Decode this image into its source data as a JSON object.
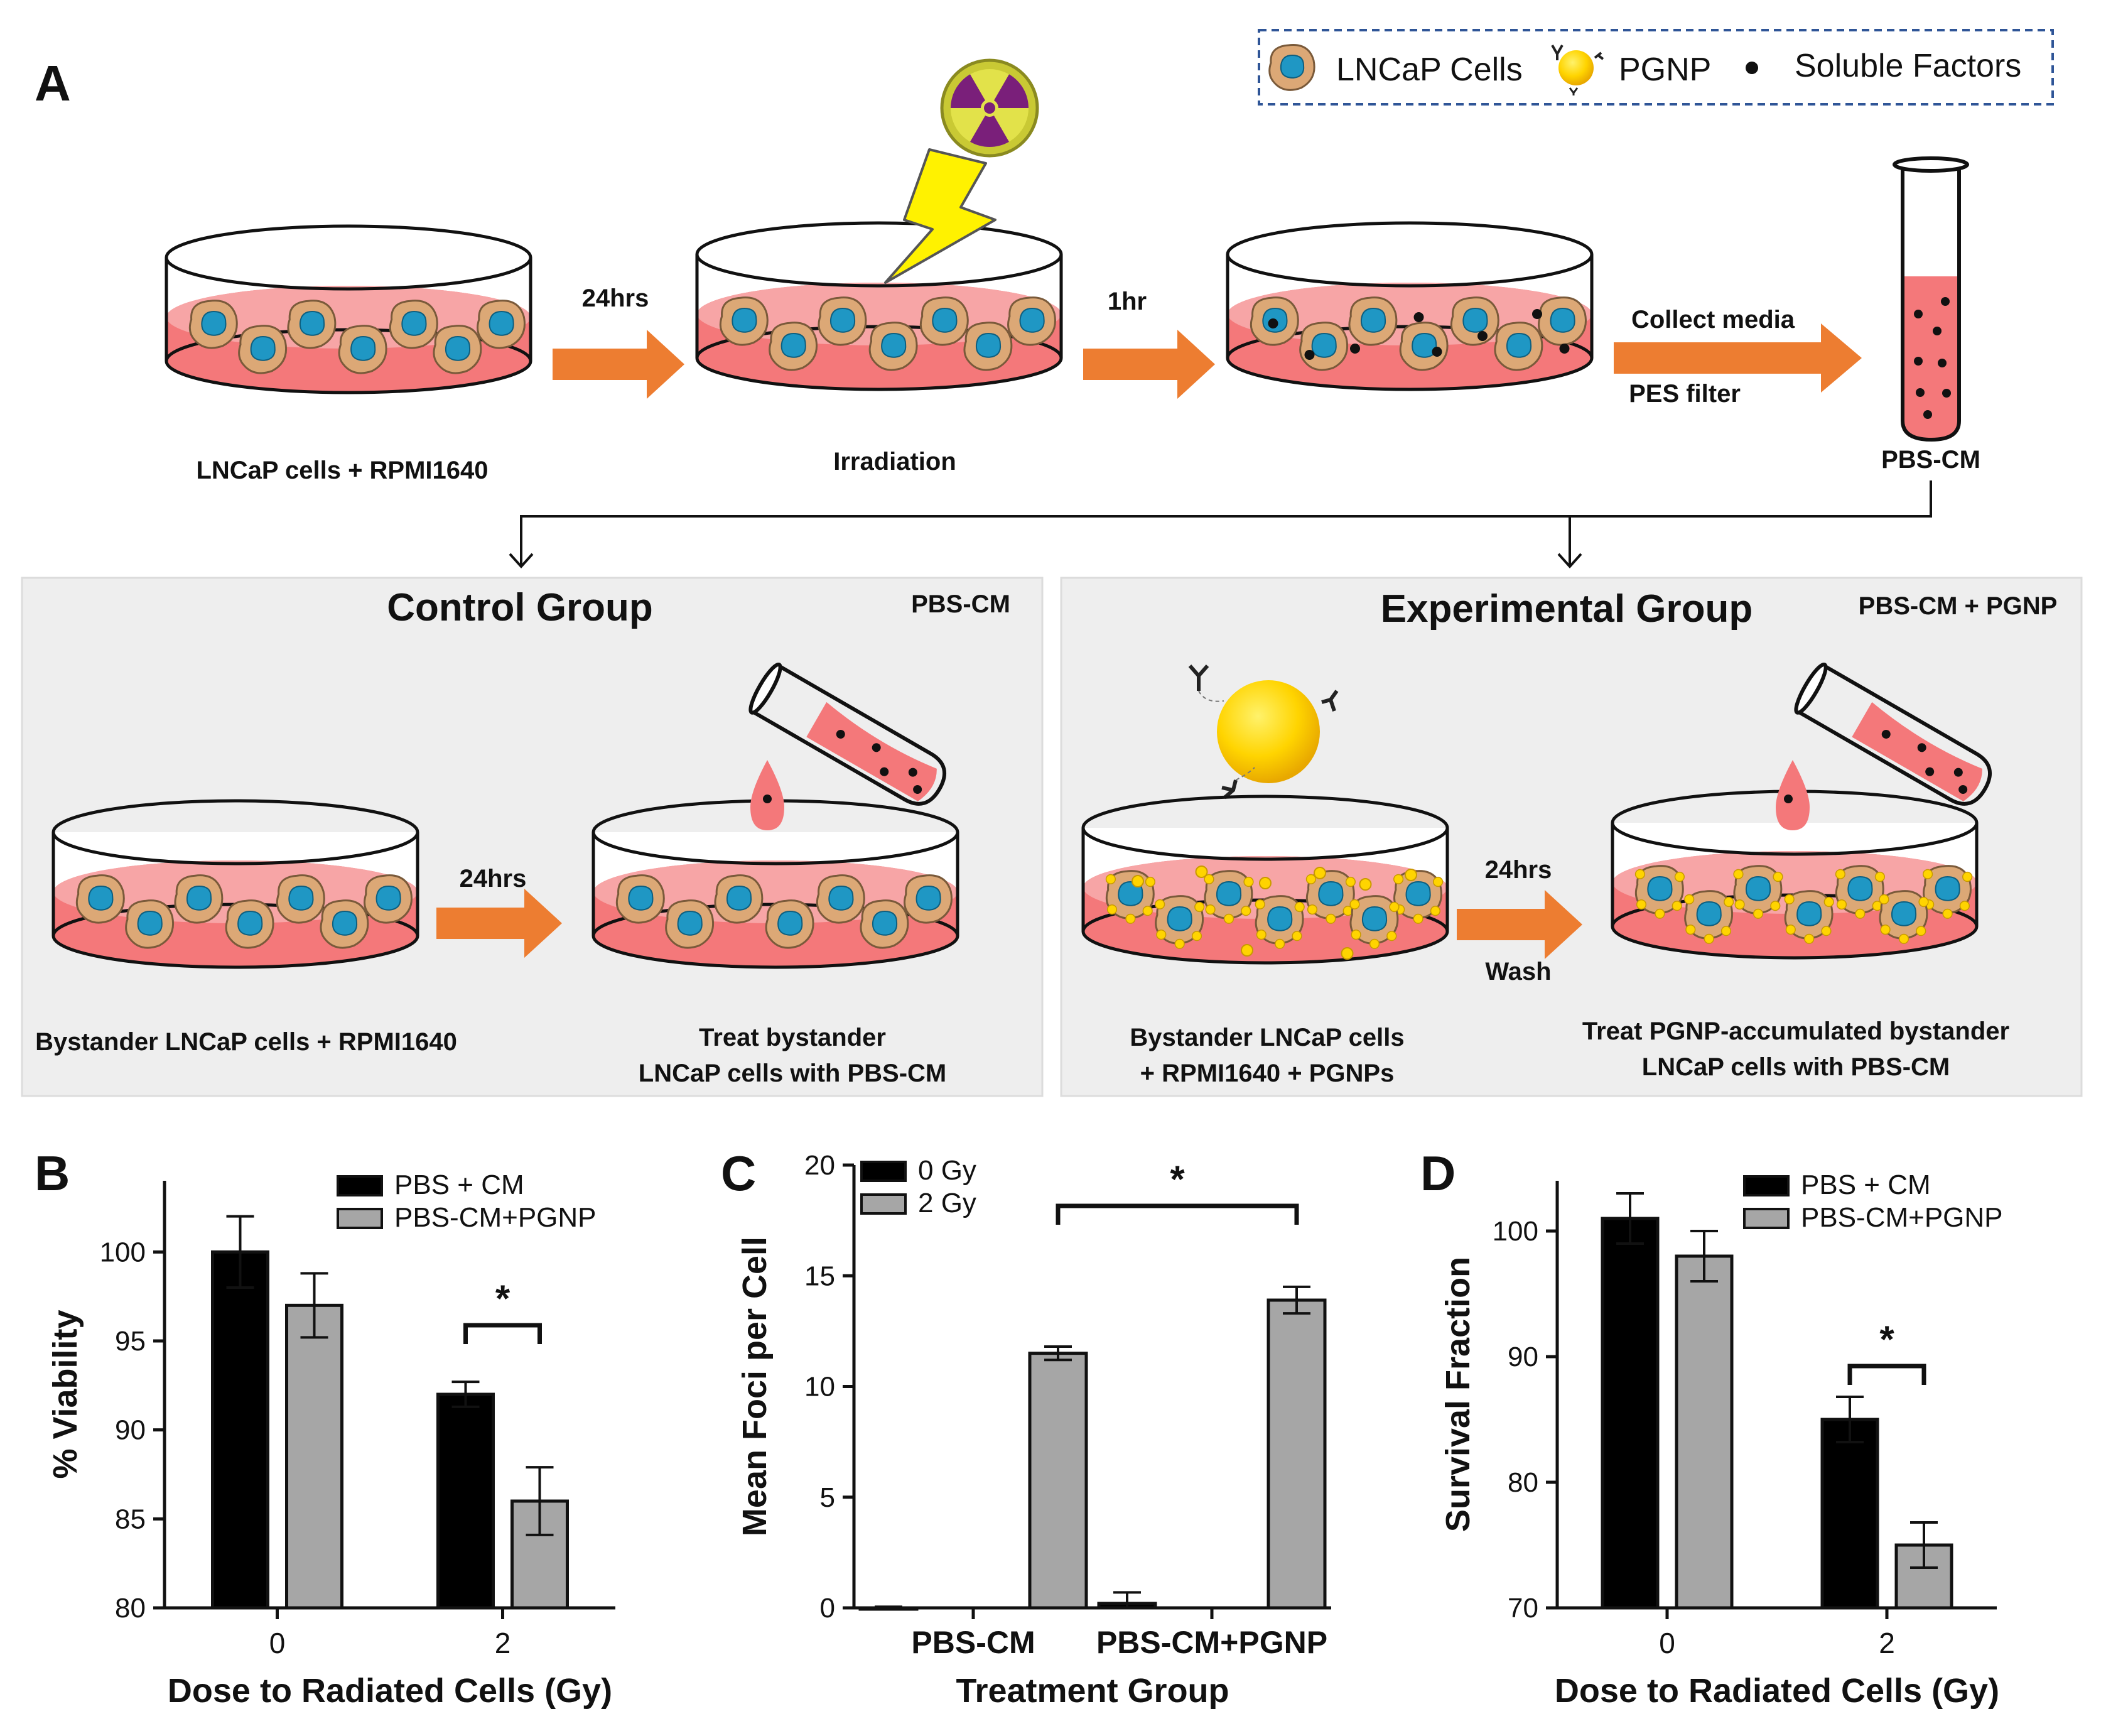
{
  "figure": {
    "panel_a_letter": "A",
    "panel_b_letter": "B",
    "panel_c_letter": "C",
    "panel_d_letter": "D"
  },
  "legend": {
    "cells": "LNCaP Cells",
    "pgnp": "PGNP",
    "factors": "Soluble Factors"
  },
  "workflow": {
    "step1_label": "LNCaP cells + RPMI1640",
    "arrow1_label": "24hrs",
    "step2_label": "Irradiation",
    "arrow2_label": "1hr",
    "arrow3_top": "Collect media",
    "arrow3_bottom": "PES filter",
    "tube_label": "PBS-CM"
  },
  "control_group": {
    "title": "Control Group",
    "tag": "PBS-CM",
    "dish1_label": "Bystander LNCaP cells + RPMI1640",
    "arrow_label": "24hrs",
    "dish2_label_line1": "Treat bystander",
    "dish2_label_line2": "LNCaP cells with PBS-CM"
  },
  "experimental_group": {
    "title": "Experimental Group",
    "tag": "PBS-CM + PGNP",
    "dish1_label_line1": "Bystander LNCaP cells",
    "dish1_label_line2": "+ RPMI1640 + PGNPs",
    "arrow_top": "24hrs",
    "arrow_bottom": "Wash",
    "dish2_label_line1": "Treat PGNP-accumulated bystander",
    "dish2_label_line2": "LNCaP cells with PBS-CM"
  },
  "colors": {
    "series_black": "#000000",
    "series_grey": "#a6a6a6",
    "arrow_orange": "#ED7D31",
    "media_pink": "#F4787A",
    "cell_nucleus": "#1f97c4",
    "cell_body": "#dca876",
    "pgnp_gold": "#FFD400",
    "panel_bg": "#eeeeee"
  },
  "chart_data": [
    {
      "panel": "B",
      "type": "bar",
      "categories": [
        "0",
        "2"
      ],
      "series": [
        {
          "name": "PBS + CM",
          "values": [
            100,
            92
          ],
          "errors": [
            2,
            0.7
          ]
        },
        {
          "name": "PBS-CM+PGNP",
          "values": [
            97,
            86
          ],
          "errors": [
            1.8,
            1.9
          ]
        }
      ],
      "ylim": [
        80,
        104
      ],
      "yticks": [
        80,
        85,
        90,
        95,
        100
      ],
      "xlabel": "Dose to Radiated Cells (Gy)",
      "ylabel": "% Viability",
      "significance": "*"
    },
    {
      "panel": "C",
      "type": "bar",
      "categories": [
        "PBS-CM",
        "PBS-CM+PGNP"
      ],
      "series": [
        {
          "name": "0 Gy",
          "values": [
            0,
            0.2
          ],
          "errors": [
            0.05,
            0.5
          ]
        },
        {
          "name": "2 Gy",
          "values": [
            11.5,
            13.9
          ],
          "errors": [
            0.3,
            0.6
          ]
        }
      ],
      "ylim": [
        0,
        20
      ],
      "yticks": [
        0,
        5,
        10,
        15,
        20
      ],
      "xlabel": "Treatment Group",
      "ylabel": "Mean Foci per Cell",
      "significance": "*"
    },
    {
      "panel": "D",
      "type": "bar",
      "categories": [
        "0",
        "2"
      ],
      "series": [
        {
          "name": "PBS + CM",
          "values": [
            101,
            85
          ],
          "errors": [
            2,
            1.8
          ]
        },
        {
          "name": "PBS-CM+PGNP",
          "values": [
            98,
            75
          ],
          "errors": [
            2,
            1.8
          ]
        }
      ],
      "ylim": [
        70,
        104
      ],
      "yticks": [
        70,
        80,
        90,
        100
      ],
      "xlabel": "Dose to Radiated Cells (Gy)",
      "ylabel": "Survival  Fraction",
      "significance": "*"
    }
  ]
}
